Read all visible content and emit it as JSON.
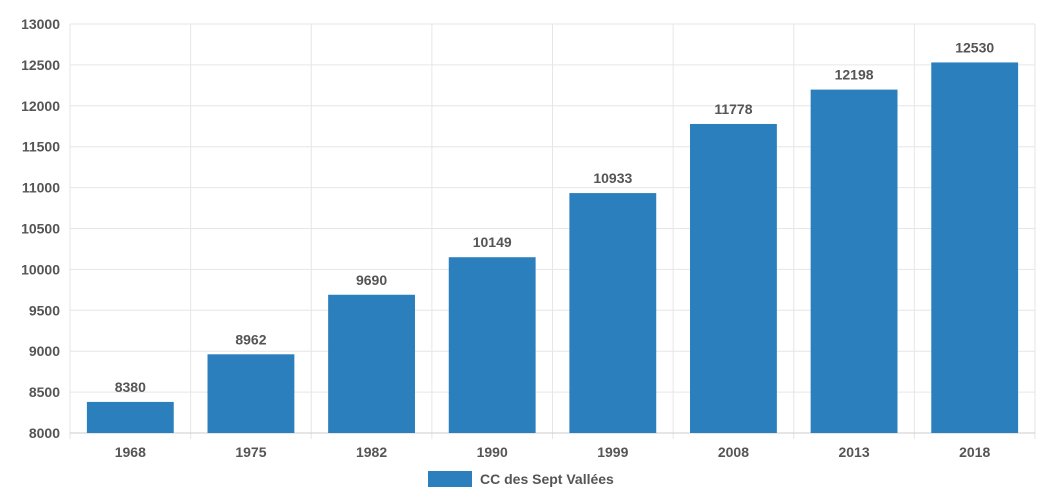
{
  "chart_data": {
    "type": "bar",
    "categories": [
      "1968",
      "1975",
      "1982",
      "1990",
      "1999",
      "2008",
      "2013",
      "2018"
    ],
    "series": [
      {
        "name": "CC des Sept Vallées",
        "values": [
          8380,
          8962,
          9690,
          10149,
          10933,
          11778,
          12198,
          12530
        ],
        "color": "#2b7fbc"
      }
    ],
    "ylim": [
      8000,
      13000
    ],
    "yticks": [
      8000,
      8500,
      9000,
      9500,
      10000,
      10500,
      11000,
      11500,
      12000,
      12500,
      13000
    ],
    "grid": true,
    "legend_position": "bottom-center"
  }
}
